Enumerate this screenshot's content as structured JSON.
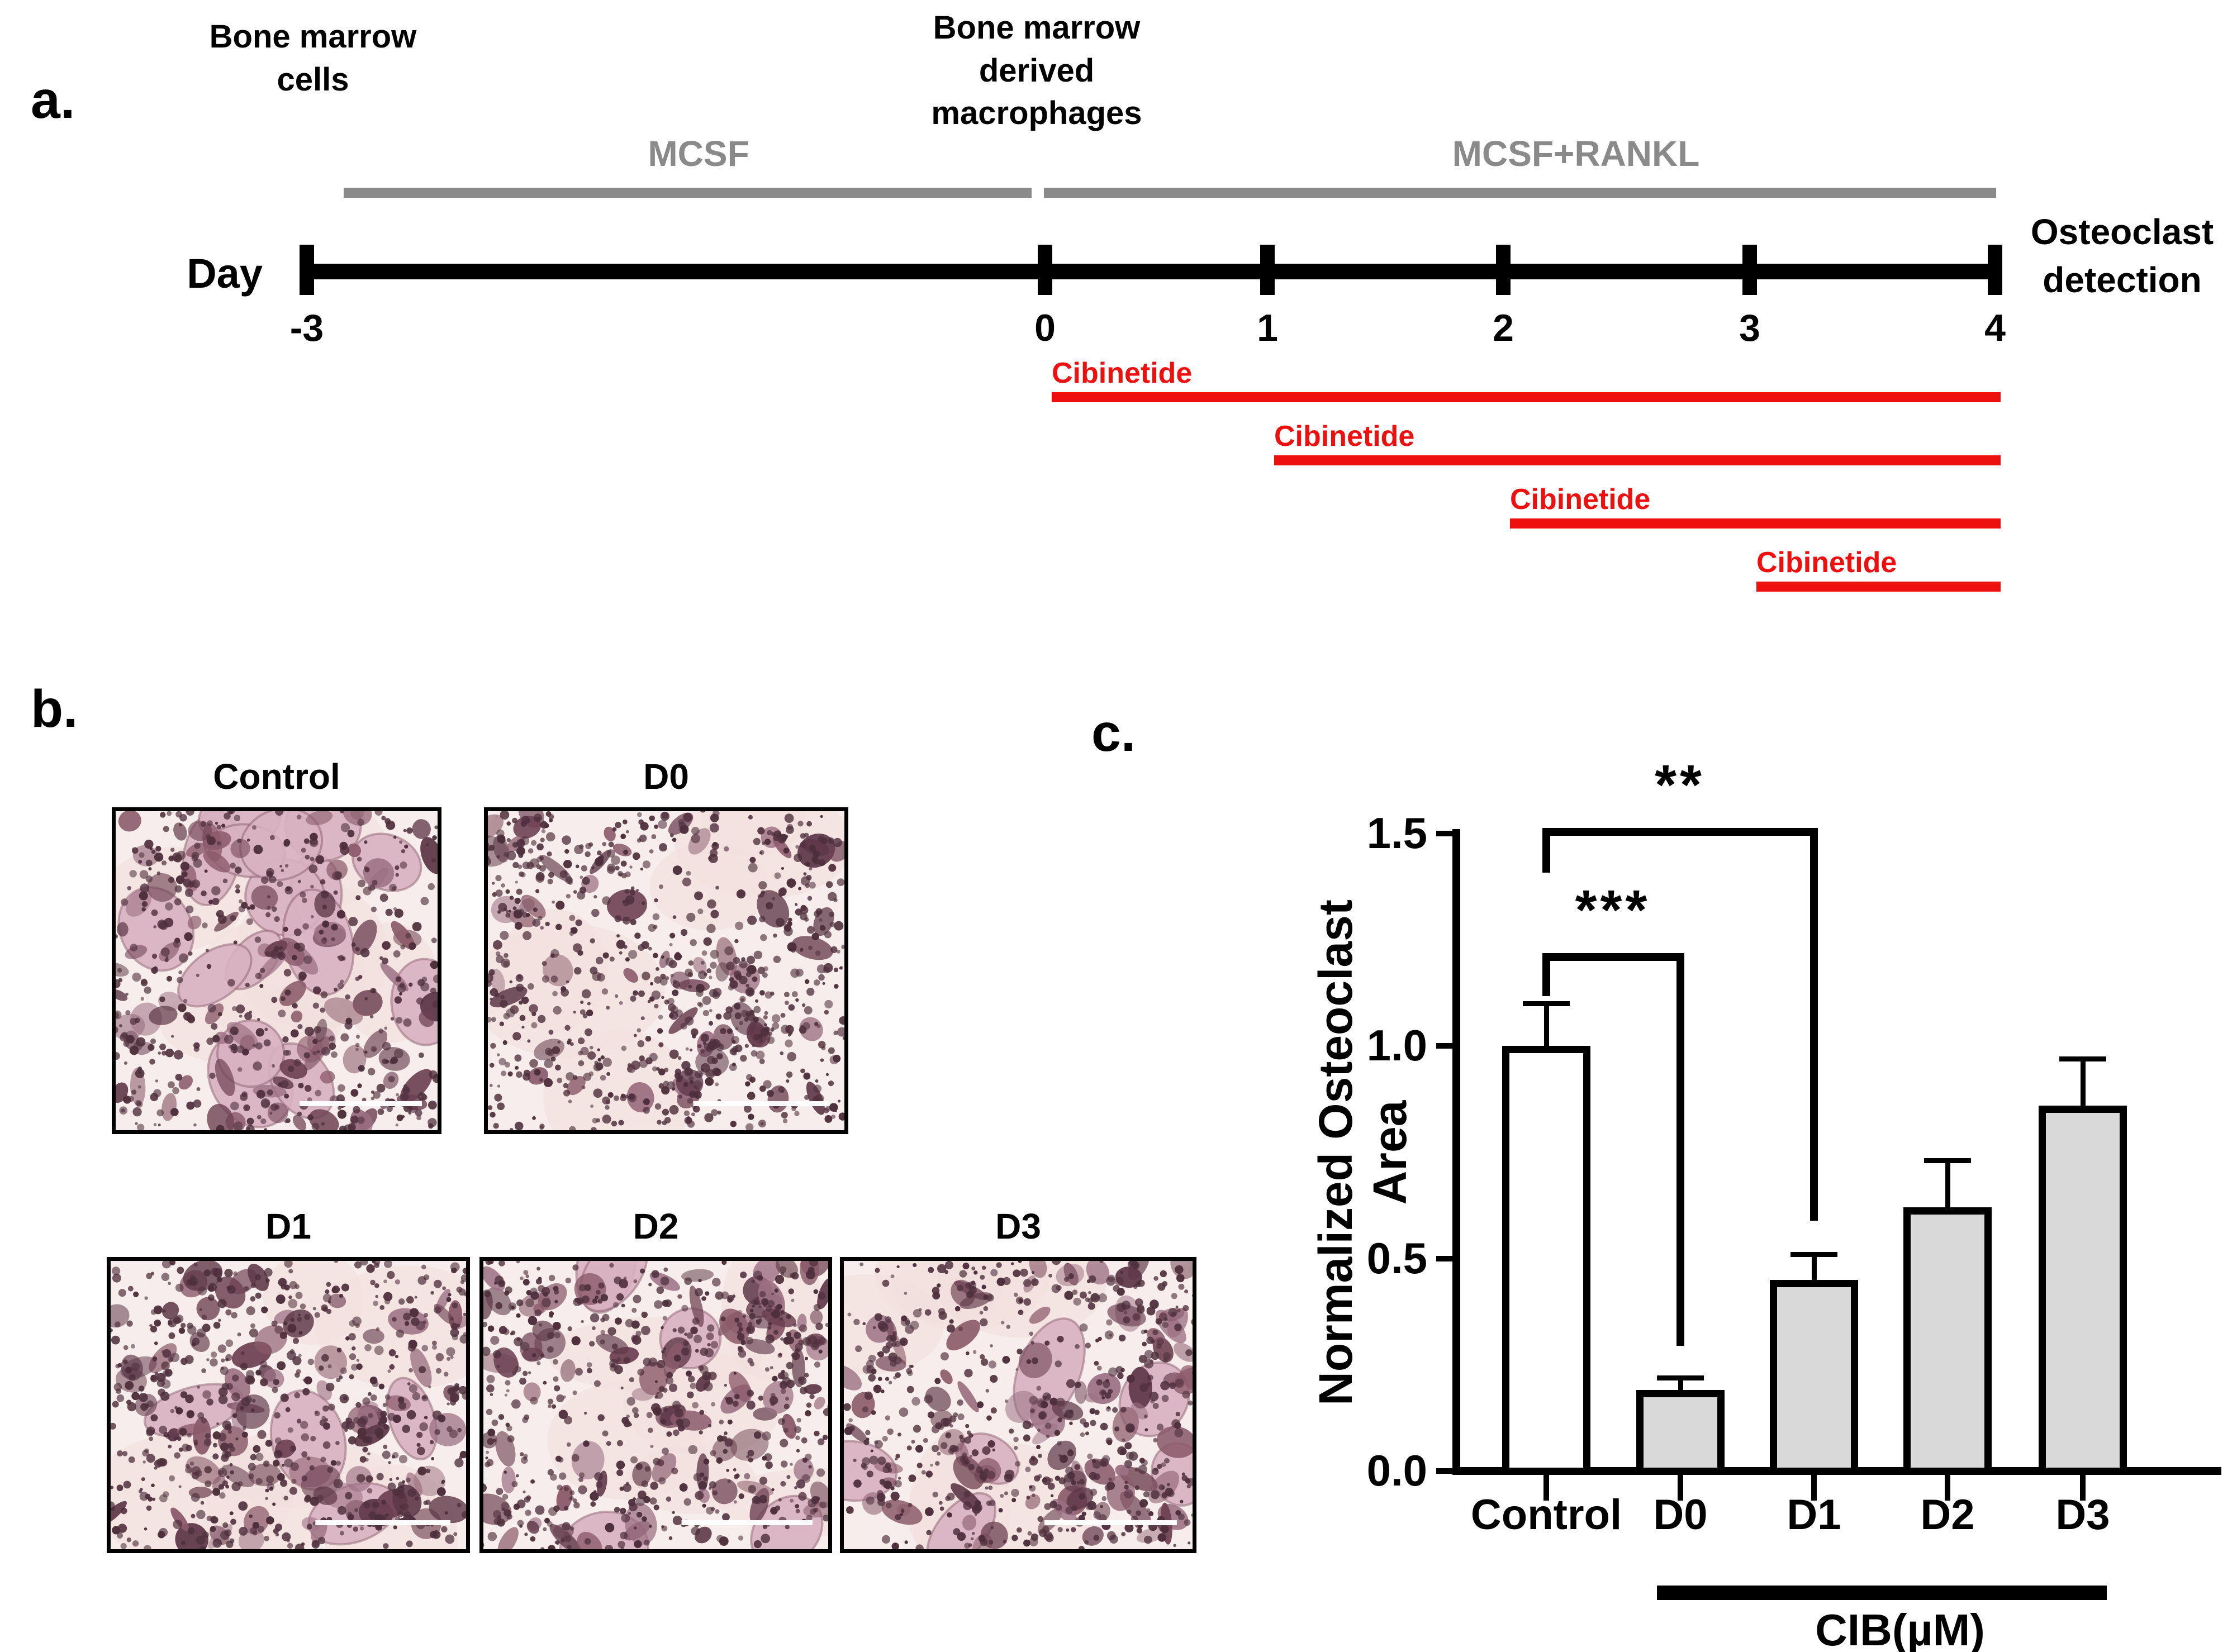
{
  "panel_a": {
    "label": "a.",
    "day_axis_label": "Day",
    "cells_label_lines": [
      "Bone marrow",
      "cells"
    ],
    "macrophages_label_lines": [
      "Bone marrow",
      "derived",
      "macrophages"
    ],
    "mcsf_label": "MCSF",
    "mcsf_rankl_label": "MCSF+RANKL",
    "endpoint_label_lines": [
      "Osteoclast",
      "detection"
    ],
    "days": [
      {
        "label": "-3"
      },
      {
        "label": "0"
      },
      {
        "label": "1"
      },
      {
        "label": "2"
      },
      {
        "label": "3"
      },
      {
        "label": "4"
      }
    ],
    "treatments": [
      {
        "label": "Cibinetide",
        "start_day": "0",
        "end_day": "4"
      },
      {
        "label": "Cibinetide",
        "start_day": "1",
        "end_day": "4"
      },
      {
        "label": "Cibinetide",
        "start_day": "2",
        "end_day": "4"
      },
      {
        "label": "Cibinetide",
        "start_day": "3",
        "end_day": "4"
      }
    ],
    "colors": {
      "timeline": "#000000",
      "growth_factor_line": "#8a8a8a",
      "treatment_line": "#ee0f0f"
    }
  },
  "panel_b": {
    "label": "b.",
    "micrographs": [
      {
        "label": "Control",
        "texture": {
          "seed": 11,
          "pale_cells": 16,
          "clusters": 85,
          "dots": 520
        }
      },
      {
        "label": "D0",
        "texture": {
          "seed": 22,
          "pale_cells": 0,
          "clusters": 55,
          "dots": 800
        }
      },
      {
        "label": "D1",
        "texture": {
          "seed": 33,
          "pale_cells": 4,
          "clusters": 75,
          "dots": 680
        }
      },
      {
        "label": "D2",
        "texture": {
          "seed": 44,
          "pale_cells": 5,
          "clusters": 85,
          "dots": 620
        }
      },
      {
        "label": "D3",
        "texture": {
          "seed": 55,
          "pale_cells": 6,
          "clusters": 80,
          "dots": 600
        }
      }
    ]
  },
  "panel_c": {
    "label": "c."
  },
  "chart_data": {
    "type": "bar",
    "title": "",
    "ylabel": "Normalized Osteoclast Area",
    "group_label": "CIB(µM)",
    "categories": [
      "Control",
      "D0",
      "D1",
      "D2",
      "D3"
    ],
    "values": [
      1.0,
      0.19,
      0.45,
      0.62,
      0.86
    ],
    "errors_upper": [
      0.1,
      0.03,
      0.06,
      0.11,
      0.11
    ],
    "ylim": [
      0,
      1.5
    ],
    "yticks": [
      "0.0",
      "0.5",
      "1.0",
      "1.5"
    ],
    "ytick_values": [
      0.0,
      0.5,
      1.0,
      1.5
    ],
    "grid": false,
    "legend_position": "none",
    "bar_fill": [
      "#ffffff",
      "#d9d9d9",
      "#d9d9d9",
      "#d9d9d9",
      "#d9d9d9"
    ],
    "bar_border": "#000000",
    "significance": [
      {
        "from": "Control",
        "to": "D0",
        "label": "***"
      },
      {
        "from": "Control",
        "to": "D1",
        "label": "**"
      }
    ],
    "group_label_span": [
      "D0",
      "D3"
    ]
  }
}
